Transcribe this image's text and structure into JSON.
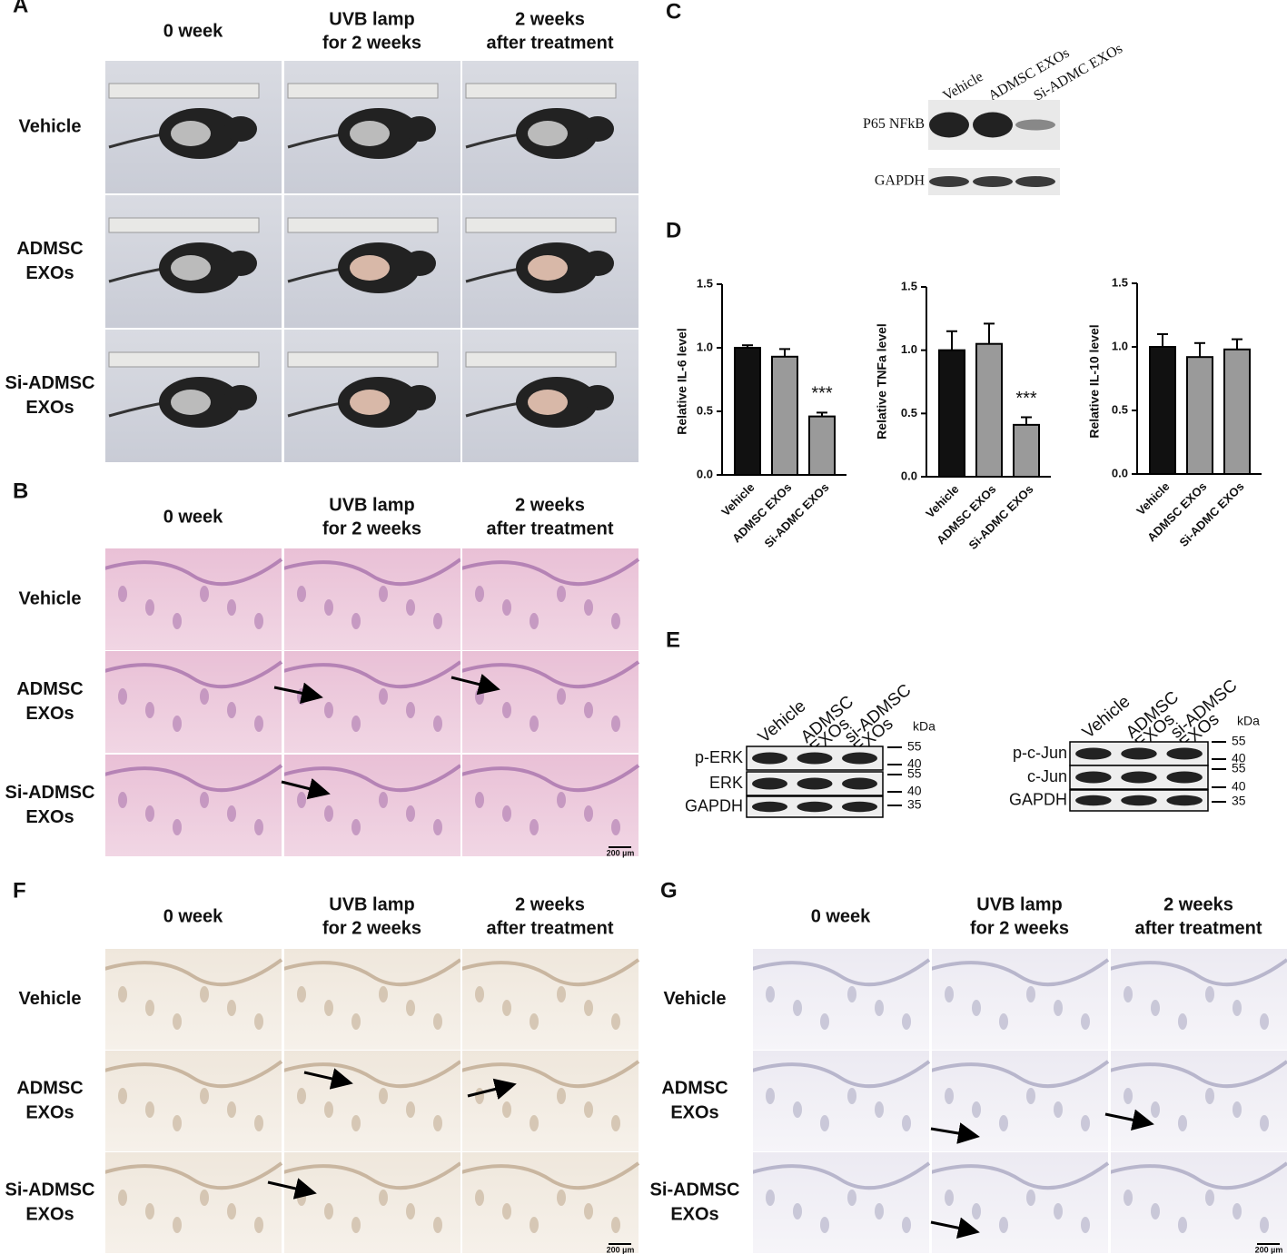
{
  "panels": {
    "A": {
      "label": "A",
      "columns": [
        [
          "0 week"
        ],
        [
          "UVB lamp",
          "for 2 weeks"
        ],
        [
          "2 weeks",
          "after treatment"
        ]
      ],
      "rows": [
        [
          "Vehicle"
        ],
        [
          "ADMSC",
          "EXOs"
        ],
        [
          "Si-ADMSC",
          "EXOs"
        ]
      ]
    },
    "B": {
      "label": "B",
      "columns": [
        [
          "0 week"
        ],
        [
          "UVB lamp",
          "for 2 weeks"
        ],
        [
          "2 weeks",
          "after treatment"
        ]
      ],
      "rows": [
        [
          "Vehicle"
        ],
        [
          "ADMSC",
          "EXOs"
        ],
        [
          "Si-ADMSC",
          "EXOs"
        ]
      ],
      "scale_bar": "200 µm"
    },
    "C": {
      "label": "C",
      "lanes": [
        "Vehicle",
        "ADMSC EXOs",
        "Si-ADMC EXOs"
      ],
      "bands": [
        "P65 NFkB",
        "GAPDH"
      ]
    },
    "D": {
      "label": "D"
    },
    "E": {
      "label": "E",
      "left": {
        "lanes": [
          [
            "Vehicle"
          ],
          [
            "ADMSC",
            "EXOs"
          ],
          [
            "si-ADMSC",
            "EXOs"
          ]
        ],
        "bands": [
          "p-ERK",
          "ERK",
          "GAPDH"
        ],
        "unit": "kDa",
        "markers": [
          55,
          40,
          55,
          40,
          35
        ]
      },
      "right": {
        "lanes": [
          [
            "Vehicle"
          ],
          [
            "ADMSC",
            "EXOs"
          ],
          [
            "si-ADMSC",
            "EXOs"
          ]
        ],
        "bands": [
          "p-c-Jun",
          "c-Jun",
          "GAPDH"
        ],
        "unit": "kDa",
        "markers": [
          55,
          40,
          55,
          40,
          35
        ]
      }
    },
    "F": {
      "label": "F",
      "columns": [
        [
          "0 week"
        ],
        [
          "UVB lamp",
          "for 2 weeks"
        ],
        [
          "2 weeks",
          "after treatment"
        ]
      ],
      "rows": [
        [
          "Vehicle"
        ],
        [
          "ADMSC",
          "EXOs"
        ],
        [
          "Si-ADMSC",
          "EXOs"
        ]
      ],
      "scale_bar": "200 µm"
    },
    "G": {
      "label": "G",
      "columns": [
        [
          "0 week"
        ],
        [
          "UVB lamp",
          "for 2 weeks"
        ],
        [
          "2 weeks",
          "after treatment"
        ]
      ],
      "rows": [
        [
          "Vehicle"
        ],
        [
          "ADMSC",
          "EXOs"
        ],
        [
          "Si-ADMSC",
          "EXOs"
        ]
      ],
      "scale_bar": "200 µm"
    }
  },
  "chart_data": [
    {
      "type": "bar",
      "y_label": "Relative IL-6 level",
      "categories": [
        "Vehicle",
        "ADMSC EXOs",
        "Si-ADMC EXOs"
      ],
      "values": [
        1.0,
        0.93,
        0.46
      ],
      "errors": [
        0.02,
        0.06,
        0.03
      ],
      "significance": [
        null,
        null,
        "***"
      ],
      "colors": [
        "#111111",
        "#9a9a9a",
        "#9a9a9a"
      ],
      "ylim": [
        0,
        1.5
      ],
      "yticks": [
        {
          "value": 0,
          "label": "0.0"
        },
        0.5,
        {
          "value": 1,
          "label": "1.0"
        },
        1.5
      ]
    },
    {
      "type": "bar",
      "y_label": "Relative TNFa level",
      "categories": [
        "Vehicle",
        "ADMSC EXOs",
        "Si-ADMC EXOs"
      ],
      "values": [
        1.0,
        1.05,
        0.41
      ],
      "errors": [
        0.15,
        0.16,
        0.06
      ],
      "significance": [
        null,
        null,
        "***"
      ],
      "colors": [
        "#111111",
        "#9a9a9a",
        "#9a9a9a"
      ],
      "ylim": [
        0,
        1.5
      ],
      "yticks": [
        {
          "value": 0,
          "label": "0.0"
        },
        0.5,
        {
          "value": 1,
          "label": "1.0"
        },
        1.5
      ]
    },
    {
      "type": "bar",
      "y_label": "Relative IL-10 level",
      "categories": [
        "Vehicle",
        "ADMSC EXOs",
        "Si-ADMC EXOs"
      ],
      "values": [
        1.0,
        0.92,
        0.98
      ],
      "errors": [
        0.1,
        0.11,
        0.08
      ],
      "significance": [
        null,
        null,
        null
      ],
      "colors": [
        "#111111",
        "#9a9a9a",
        "#9a9a9a"
      ],
      "ylim": [
        0,
        1.5
      ],
      "yticks": [
        {
          "value": 0,
          "label": "0.0"
        },
        0.5,
        {
          "value": 1,
          "label": "1.0"
        },
        1.5
      ]
    }
  ]
}
